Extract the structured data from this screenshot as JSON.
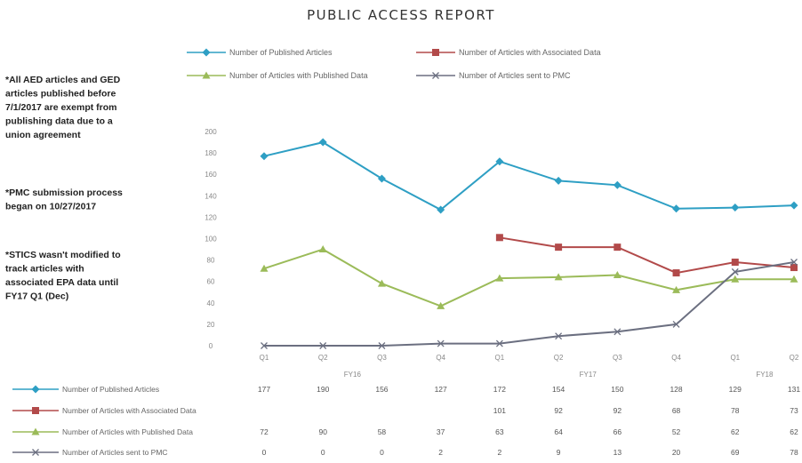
{
  "chart_data": {
    "type": "line",
    "title": "PUBLIC ACCESS REPORT",
    "categories": [
      "Q1",
      "Q2",
      "Q3",
      "Q4",
      "Q1",
      "Q2",
      "Q3",
      "Q4",
      "Q1",
      "Q2"
    ],
    "fiscal_years": [
      {
        "label": "FY16",
        "start": 0,
        "end": 3
      },
      {
        "label": "FY17",
        "start": 4,
        "end": 7
      },
      {
        "label": "FY18",
        "start": 8,
        "end": 9
      }
    ],
    "y_ticks": [
      0,
      20,
      40,
      60,
      80,
      100,
      120,
      140,
      160,
      180,
      200
    ],
    "ylim": [
      0,
      200
    ],
    "grid": false,
    "legend_position": "top",
    "series": [
      {
        "name": "Number of Published Articles",
        "color": "#2e9fc4",
        "marker": "diamond",
        "values": [
          177,
          190,
          156,
          127,
          172,
          154,
          150,
          128,
          129,
          131
        ]
      },
      {
        "name": "Number of Articles with Associated Data",
        "color": "#b24a4a",
        "marker": "square",
        "values": [
          null,
          null,
          null,
          null,
          101,
          92,
          92,
          68,
          78,
          73
        ]
      },
      {
        "name": "Number of Articles with Published Data",
        "color": "#9bbb59",
        "marker": "triangle",
        "values": [
          72,
          90,
          58,
          37,
          63,
          64,
          66,
          52,
          62,
          62
        ]
      },
      {
        "name": "Number of Articles sent to PMC",
        "color": "#6b6f80",
        "marker": "x",
        "values": [
          0,
          0,
          0,
          2,
          2,
          9,
          13,
          20,
          69,
          78
        ]
      }
    ]
  },
  "notes": [
    [
      "*All AED articles and GED",
      "articles published before",
      "7/1/2017 are exempt from",
      "publishing data due to a",
      "union agreement"
    ],
    [
      "*PMC submission process",
      "began on 10/27/2017"
    ],
    [
      "*STICS wasn't modified to",
      "track articles with",
      "associated EPA data until",
      "FY17 Q1 (Dec)"
    ]
  ]
}
